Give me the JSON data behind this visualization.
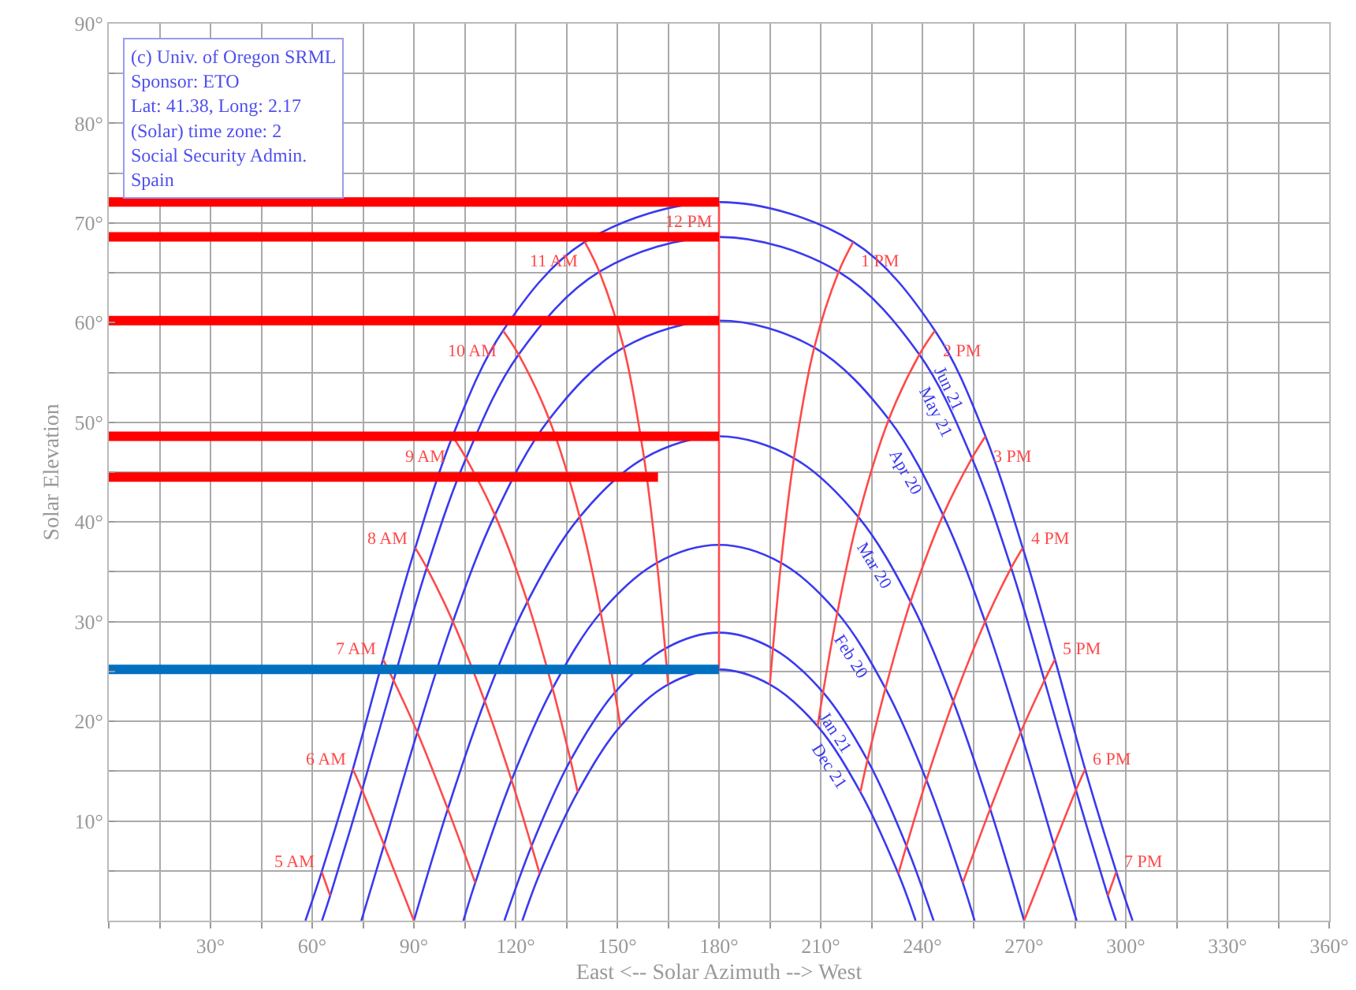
{
  "chart_data": {
    "type": "line",
    "xlabel": "East <-- Solar Azimuth --> West",
    "ylabel": "Solar Elevation",
    "xlim": [
      0,
      360
    ],
    "ylim": [
      0,
      90
    ],
    "xticks": [
      {
        "value": 0,
        "label": null
      },
      {
        "value": 15,
        "label": null
      },
      {
        "value": 30,
        "label": "30°"
      },
      {
        "value": 45,
        "label": null
      },
      {
        "value": 60,
        "label": "60°"
      },
      {
        "value": 75,
        "label": null
      },
      {
        "value": 90,
        "label": "90°"
      },
      {
        "value": 105,
        "label": null
      },
      {
        "value": 120,
        "label": "120°"
      },
      {
        "value": 135,
        "label": null
      },
      {
        "value": 150,
        "label": "150°"
      },
      {
        "value": 165,
        "label": null
      },
      {
        "value": 180,
        "label": "180°"
      },
      {
        "value": 195,
        "label": null
      },
      {
        "value": 210,
        "label": "210°"
      },
      {
        "value": 225,
        "label": null
      },
      {
        "value": 240,
        "label": "240°"
      },
      {
        "value": 255,
        "label": null
      },
      {
        "value": 270,
        "label": "270°"
      },
      {
        "value": 285,
        "label": null
      },
      {
        "value": 300,
        "label": "300°"
      },
      {
        "value": 315,
        "label": null
      },
      {
        "value": 330,
        "label": "330°"
      },
      {
        "value": 345,
        "label": null
      },
      {
        "value": 360,
        "label": "360°"
      }
    ],
    "yticks": [
      {
        "value": 0,
        "label": null
      },
      {
        "value": 5,
        "label": null
      },
      {
        "value": 10,
        "label": "10°"
      },
      {
        "value": 15,
        "label": null
      },
      {
        "value": 20,
        "label": "20°"
      },
      {
        "value": 25,
        "label": null
      },
      {
        "value": 30,
        "label": "30°"
      },
      {
        "value": 35,
        "label": null
      },
      {
        "value": 40,
        "label": "40°"
      },
      {
        "value": 45,
        "label": null
      },
      {
        "value": 50,
        "label": "50°"
      },
      {
        "value": 55,
        "label": null
      },
      {
        "value": 60,
        "label": "60°"
      },
      {
        "value": 65,
        "label": null
      },
      {
        "value": 70,
        "label": "70°"
      },
      {
        "value": 75,
        "label": null
      },
      {
        "value": 80,
        "label": "80°"
      },
      {
        "value": 85,
        "label": null
      },
      {
        "value": 90,
        "label": "90°"
      }
    ],
    "grid": true,
    "legend": false,
    "marker": "none",
    "line_style": "solid",
    "annotations": [
      "(c) Univ. of Oregon SRML\nSponsor: ETO\nLat: 41.38, Long: 2.17\n(Solar) time zone: 2\nSocial Security Admin.\nSpain"
    ],
    "series": [
      {
        "name": "Jun 21",
        "color": "#3a3af0",
        "x": [
          58.0,
          62.8,
          72.0,
          80.9,
          90.4,
          101.4,
          116.3,
          140.4,
          180,
          219.6,
          243.7,
          258.6,
          269.6,
          279.1,
          288.0,
          297.2,
          302.0
        ],
        "values": [
          0,
          4.9,
          15.2,
          26.2,
          37.4,
          48.6,
          59.2,
          68.1,
          72.1,
          68.1,
          59.2,
          48.6,
          37.4,
          26.2,
          15.2,
          4.9,
          0
        ]
      },
      {
        "name": "May 21",
        "color": "#3a3af0",
        "x": [
          62.9,
          65.3,
          74.7,
          84.0,
          93.8,
          105.4,
          120.9,
          144.7,
          180,
          215.3,
          239.1,
          254.6,
          266.2,
          276.0,
          285.3,
          294.7,
          297.1
        ],
        "values": [
          0,
          2.5,
          13.1,
          24.1,
          35.4,
          46.4,
          56.8,
          65.1,
          68.6,
          65.1,
          56.8,
          46.4,
          35.4,
          24.1,
          13.1,
          2.5,
          0
        ]
      },
      {
        "name": "Apr 20",
        "color": "#3a3af0",
        "x": [
          74.5,
          81.2,
          91.0,
          101.5,
          113.9,
          129.9,
          151.9,
          180,
          208.1,
          230.1,
          246.1,
          258.5,
          269.0,
          278.8,
          285.5
        ],
        "values": [
          0,
          7.6,
          18.9,
          30.0,
          40.7,
          50.3,
          57.5,
          60.2,
          57.5,
          50.3,
          40.7,
          30.0,
          18.9,
          7.6,
          0
        ]
      },
      {
        "name": "Mar 20",
        "color": "#3a3af0",
        "x": [
          90,
          100.0,
          110.9,
          123.5,
          138.9,
          157.9,
          180,
          202.1,
          221.1,
          236.5,
          249.1,
          260.0,
          270
        ],
        "values": [
          0,
          11.2,
          22.0,
          32.0,
          40.5,
          46.4,
          48.6,
          46.4,
          40.5,
          32.0,
          22.0,
          11.2,
          0
        ]
      },
      {
        "name": "Feb 20",
        "color": "#3a3af0",
        "x": [
          104.6,
          108.1,
          118.8,
          130.9,
          145.1,
          161.7,
          180,
          198.3,
          214.9,
          229.1,
          241.2,
          251.9,
          255.4
        ],
        "values": [
          0,
          3.8,
          14.1,
          23.3,
          30.9,
          35.9,
          37.7,
          35.9,
          30.9,
          23.3,
          14.1,
          3.8,
          0
        ]
      },
      {
        "name": "Jan 21",
        "color": "#3a3af0",
        "x": [
          116.7,
          124.7,
          136.2,
          149.3,
          164.1,
          180,
          195.9,
          210.7,
          223.8,
          235.3,
          243.3
        ],
        "values": [
          0,
          7.5,
          16.1,
          22.9,
          27.3,
          28.9,
          27.3,
          22.9,
          16.1,
          7.5,
          0
        ]
      },
      {
        "name": "Dec 21",
        "color": "#3a3af0",
        "x": [
          122.0,
          127.1,
          138.3,
          150.9,
          165.0,
          180,
          195.0,
          209.1,
          221.7,
          232.9,
          238.0
        ],
        "values": [
          0,
          4.7,
          12.9,
          19.5,
          23.7,
          25.2,
          23.7,
          19.5,
          12.9,
          4.7,
          0
        ]
      },
      {
        "name": "5 AM",
        "color": "#ff4a4a",
        "x": [
          65.3,
          62.8
        ],
        "values": [
          2.5,
          4.9
        ]
      },
      {
        "name": "6 AM",
        "color": "#ff4a4a",
        "x": [
          90,
          81.2,
          74.7,
          72.0
        ],
        "values": [
          0,
          7.6,
          13.1,
          15.2
        ]
      },
      {
        "name": "7 AM",
        "color": "#ff4a4a",
        "x": [
          108.1,
          100.0,
          91.0,
          84.0,
          80.9
        ],
        "values": [
          3.8,
          11.2,
          18.9,
          24.1,
          26.2
        ]
      },
      {
        "name": "8 AM",
        "color": "#ff4a4a",
        "x": [
          127.1,
          124.7,
          118.8,
          110.9,
          101.5,
          93.8,
          90.4
        ],
        "values": [
          4.7,
          7.5,
          14.1,
          22.0,
          30.0,
          35.4,
          37.4
        ]
      },
      {
        "name": "9 AM",
        "color": "#ff4a4a",
        "x": [
          138.3,
          136.2,
          130.9,
          123.5,
          113.9,
          105.4,
          101.4
        ],
        "values": [
          12.9,
          16.1,
          23.3,
          32.0,
          40.7,
          46.4,
          48.6
        ]
      },
      {
        "name": "10 AM",
        "color": "#ff4a4a",
        "x": [
          150.9,
          149.3,
          145.1,
          138.9,
          129.9,
          120.9,
          116.3
        ],
        "values": [
          19.5,
          22.9,
          30.9,
          40.5,
          50.3,
          56.8,
          59.2
        ]
      },
      {
        "name": "11 AM",
        "color": "#ff4a4a",
        "x": [
          165.0,
          164.1,
          161.7,
          157.9,
          151.9,
          144.7,
          140.4
        ],
        "values": [
          23.7,
          27.3,
          35.9,
          46.4,
          57.5,
          65.1,
          68.1
        ]
      },
      {
        "name": "12 PM",
        "color": "#ff4a4a",
        "x": [
          180,
          180
        ],
        "values": [
          25.2,
          72.1
        ]
      },
      {
        "name": "1 PM",
        "color": "#ff4a4a",
        "x": [
          195.0,
          195.9,
          198.3,
          202.1,
          208.1,
          215.3,
          219.6
        ],
        "values": [
          23.7,
          27.3,
          35.9,
          46.4,
          57.5,
          65.1,
          68.1
        ]
      },
      {
        "name": "2 PM",
        "color": "#ff4a4a",
        "x": [
          209.1,
          210.7,
          214.9,
          221.1,
          230.1,
          239.1,
          243.7
        ],
        "values": [
          19.5,
          22.9,
          30.9,
          40.5,
          50.3,
          56.8,
          59.2
        ]
      },
      {
        "name": "3 PM",
        "color": "#ff4a4a",
        "x": [
          221.7,
          223.8,
          229.1,
          236.5,
          246.1,
          254.6,
          258.6
        ],
        "values": [
          12.9,
          16.1,
          23.3,
          32.0,
          40.7,
          46.4,
          48.6
        ]
      },
      {
        "name": "4 PM",
        "color": "#ff4a4a",
        "x": [
          232.9,
          235.3,
          241.2,
          249.1,
          258.5,
          266.2,
          269.6
        ],
        "values": [
          4.7,
          7.5,
          14.1,
          22.0,
          30.0,
          35.4,
          37.4
        ]
      },
      {
        "name": "5 PM",
        "color": "#ff4a4a",
        "x": [
          251.9,
          260.0,
          269.0,
          276.0,
          279.1
        ],
        "values": [
          3.8,
          11.2,
          18.9,
          24.1,
          26.2
        ]
      },
      {
        "name": "6 PM",
        "color": "#ff4a4a",
        "x": [
          270,
          278.8,
          285.3,
          288.0
        ],
        "values": [
          0,
          7.6,
          13.1,
          15.2
        ]
      },
      {
        "name": "7 PM",
        "color": "#ff4a4a",
        "x": [
          294.7,
          297.2
        ],
        "values": [
          2.5,
          4.9
        ]
      },
      {
        "color": "#ff0000",
        "x": [
          0,
          180
        ],
        "values": [
          72.1,
          72.1
        ]
      },
      {
        "color": "#ff0000",
        "x": [
          0,
          180
        ],
        "values": [
          68.6,
          68.6
        ]
      },
      {
        "color": "#ff0000",
        "x": [
          0,
          180
        ],
        "values": [
          60.2,
          60.2
        ]
      },
      {
        "color": "#ff0000",
        "x": [
          0,
          180
        ],
        "values": [
          48.6,
          48.6
        ]
      },
      {
        "color": "#ff0000",
        "x": [
          0,
          162
        ],
        "values": [
          44.5,
          44.5
        ]
      },
      {
        "color": "#0070c0",
        "x": [
          0,
          180
        ],
        "values": [
          25.2,
          25.2
        ]
      }
    ]
  }
}
